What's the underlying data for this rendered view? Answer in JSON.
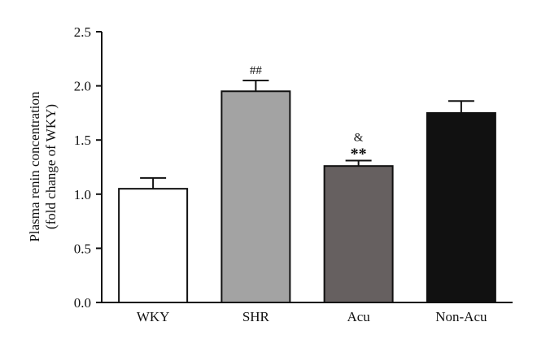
{
  "chart_data": {
    "type": "bar",
    "categories": [
      "WKY",
      "SHR",
      "Acu",
      "Non-Acu"
    ],
    "values": [
      1.05,
      1.95,
      1.26,
      1.75
    ],
    "errors": [
      0.1,
      0.1,
      0.05,
      0.11
    ],
    "colors": [
      "#ffffff",
      "#a3a3a3",
      "#666060",
      "#111111"
    ],
    "annotations": [
      {
        "category": "SHR",
        "lines": [
          "##"
        ]
      },
      {
        "category": "Acu",
        "lines": [
          "&",
          "**"
        ]
      }
    ],
    "ylabel_lines": [
      "Plasma renin concentration",
      "(fold change of WKY)"
    ],
    "ylim": [
      0,
      2.5
    ],
    "yticks": [
      0.0,
      0.5,
      1.0,
      1.5,
      2.0,
      2.5
    ],
    "ytick_labels": [
      "0.0",
      "0.5",
      "1.0",
      "1.5",
      "2.0",
      "2.5"
    ],
    "grid": false,
    "legend": "none"
  }
}
